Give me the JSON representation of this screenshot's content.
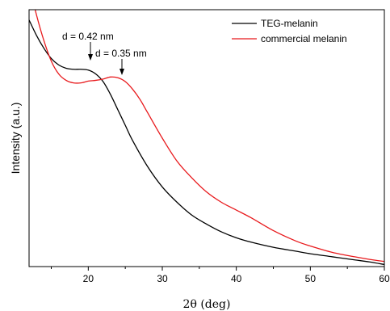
{
  "chart_data": {
    "type": "line",
    "title": "",
    "xlabel": "2θ (deg)",
    "ylabel": "Intensity (a.u.)",
    "xlim": [
      12,
      60
    ],
    "ylim": [
      0,
      100
    ],
    "xticks": [
      20,
      30,
      40,
      50,
      60
    ],
    "xtick_labels": [
      "20",
      "30",
      "40",
      "50",
      "60"
    ],
    "y_tick_labels_shown": false,
    "grid": false,
    "legend": {
      "position": "top-right"
    },
    "series": [
      {
        "name": "TEG-melanin",
        "color": "#000000",
        "x": [
          12,
          13,
          14,
          15,
          16,
          17,
          18,
          19,
          20,
          21,
          22,
          23,
          24,
          25,
          26,
          28,
          30,
          32,
          34,
          36,
          38,
          40,
          42,
          45,
          48,
          50,
          53,
          56,
          58,
          60
        ],
        "y": [
          96,
          90,
          85,
          81,
          78.5,
          77.2,
          76.8,
          76.8,
          76.5,
          75,
          72,
          67,
          61,
          55,
          49,
          39,
          31,
          25,
          20,
          16.5,
          13.5,
          11.2,
          9.5,
          7.5,
          6,
          5,
          3.8,
          2.6,
          1.8,
          0.8
        ]
      },
      {
        "name": "commercial melanin",
        "color": "#e8191c",
        "x": [
          12,
          13,
          14,
          15,
          16,
          17,
          18,
          19,
          20,
          21,
          22,
          23,
          24,
          25,
          26,
          27,
          28,
          30,
          32,
          34,
          36,
          38,
          40,
          42,
          45,
          48,
          50,
          53,
          56,
          58,
          60
        ],
        "y": [
          110,
          98,
          88,
          80,
          75,
          72.5,
          71.5,
          71.5,
          72.2,
          72.5,
          73,
          73.8,
          73.5,
          72,
          69,
          65,
          60,
          50,
          41,
          34.5,
          29,
          25,
          22,
          19,
          14,
          10,
          8,
          5.5,
          3.8,
          2.8,
          2
        ]
      }
    ],
    "annotations": [
      {
        "text": "d = 0.42 nm",
        "x": 20,
        "y": 76.5
      },
      {
        "text": "d = 0.35 nm",
        "x": 24.3,
        "y": 73.5
      }
    ]
  }
}
